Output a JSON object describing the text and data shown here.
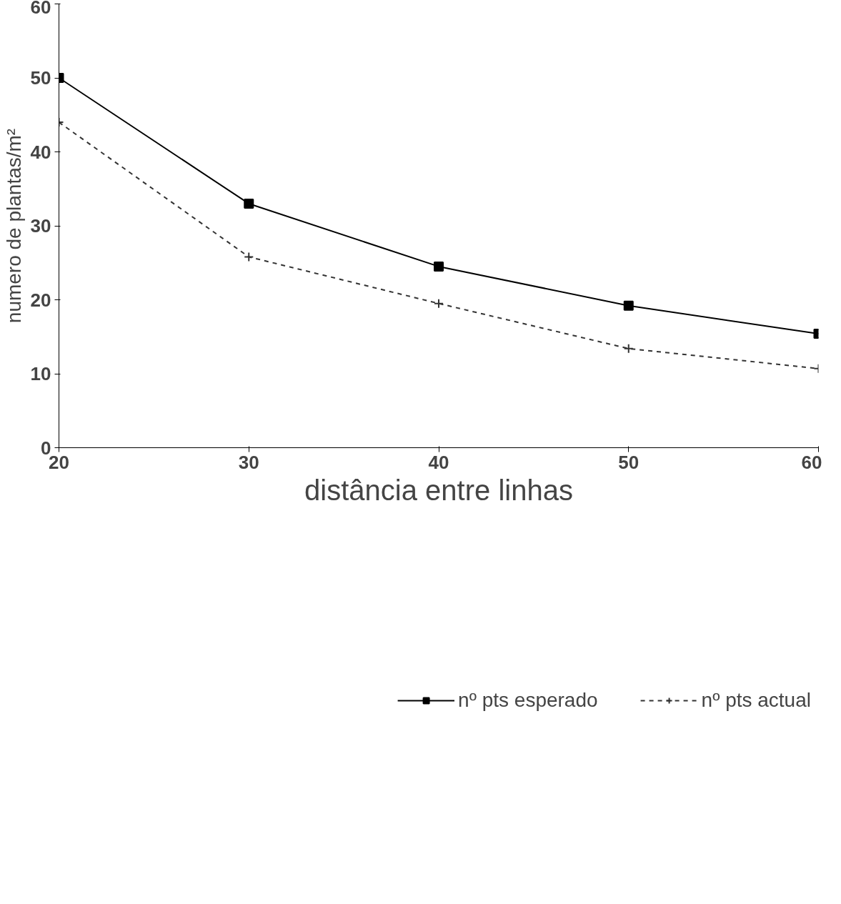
{
  "chart_data": {
    "type": "line",
    "xlabel": "distância entre linhas",
    "ylabel": "numero de plantas/m²",
    "x": [
      20,
      30,
      40,
      50,
      60
    ],
    "series": [
      {
        "name": "nº pts esperado",
        "color": "#000000",
        "values": [
          50,
          33,
          24.5,
          19.2,
          15.4
        ],
        "marker": "square",
        "line_style": "solid"
      },
      {
        "name": "nº pts actual",
        "color": "#333333",
        "values": [
          44,
          25.8,
          19.5,
          13.4,
          10.7
        ],
        "marker": "cross",
        "line_style": "dashed"
      }
    ],
    "xlim": [
      20,
      60
    ],
    "xticks": [
      20,
      30,
      40,
      50,
      60
    ],
    "ylim": [
      0,
      60
    ],
    "yticks": [
      0,
      10,
      20,
      30,
      40,
      50,
      60
    ],
    "grid": false,
    "legend": "bottom"
  }
}
